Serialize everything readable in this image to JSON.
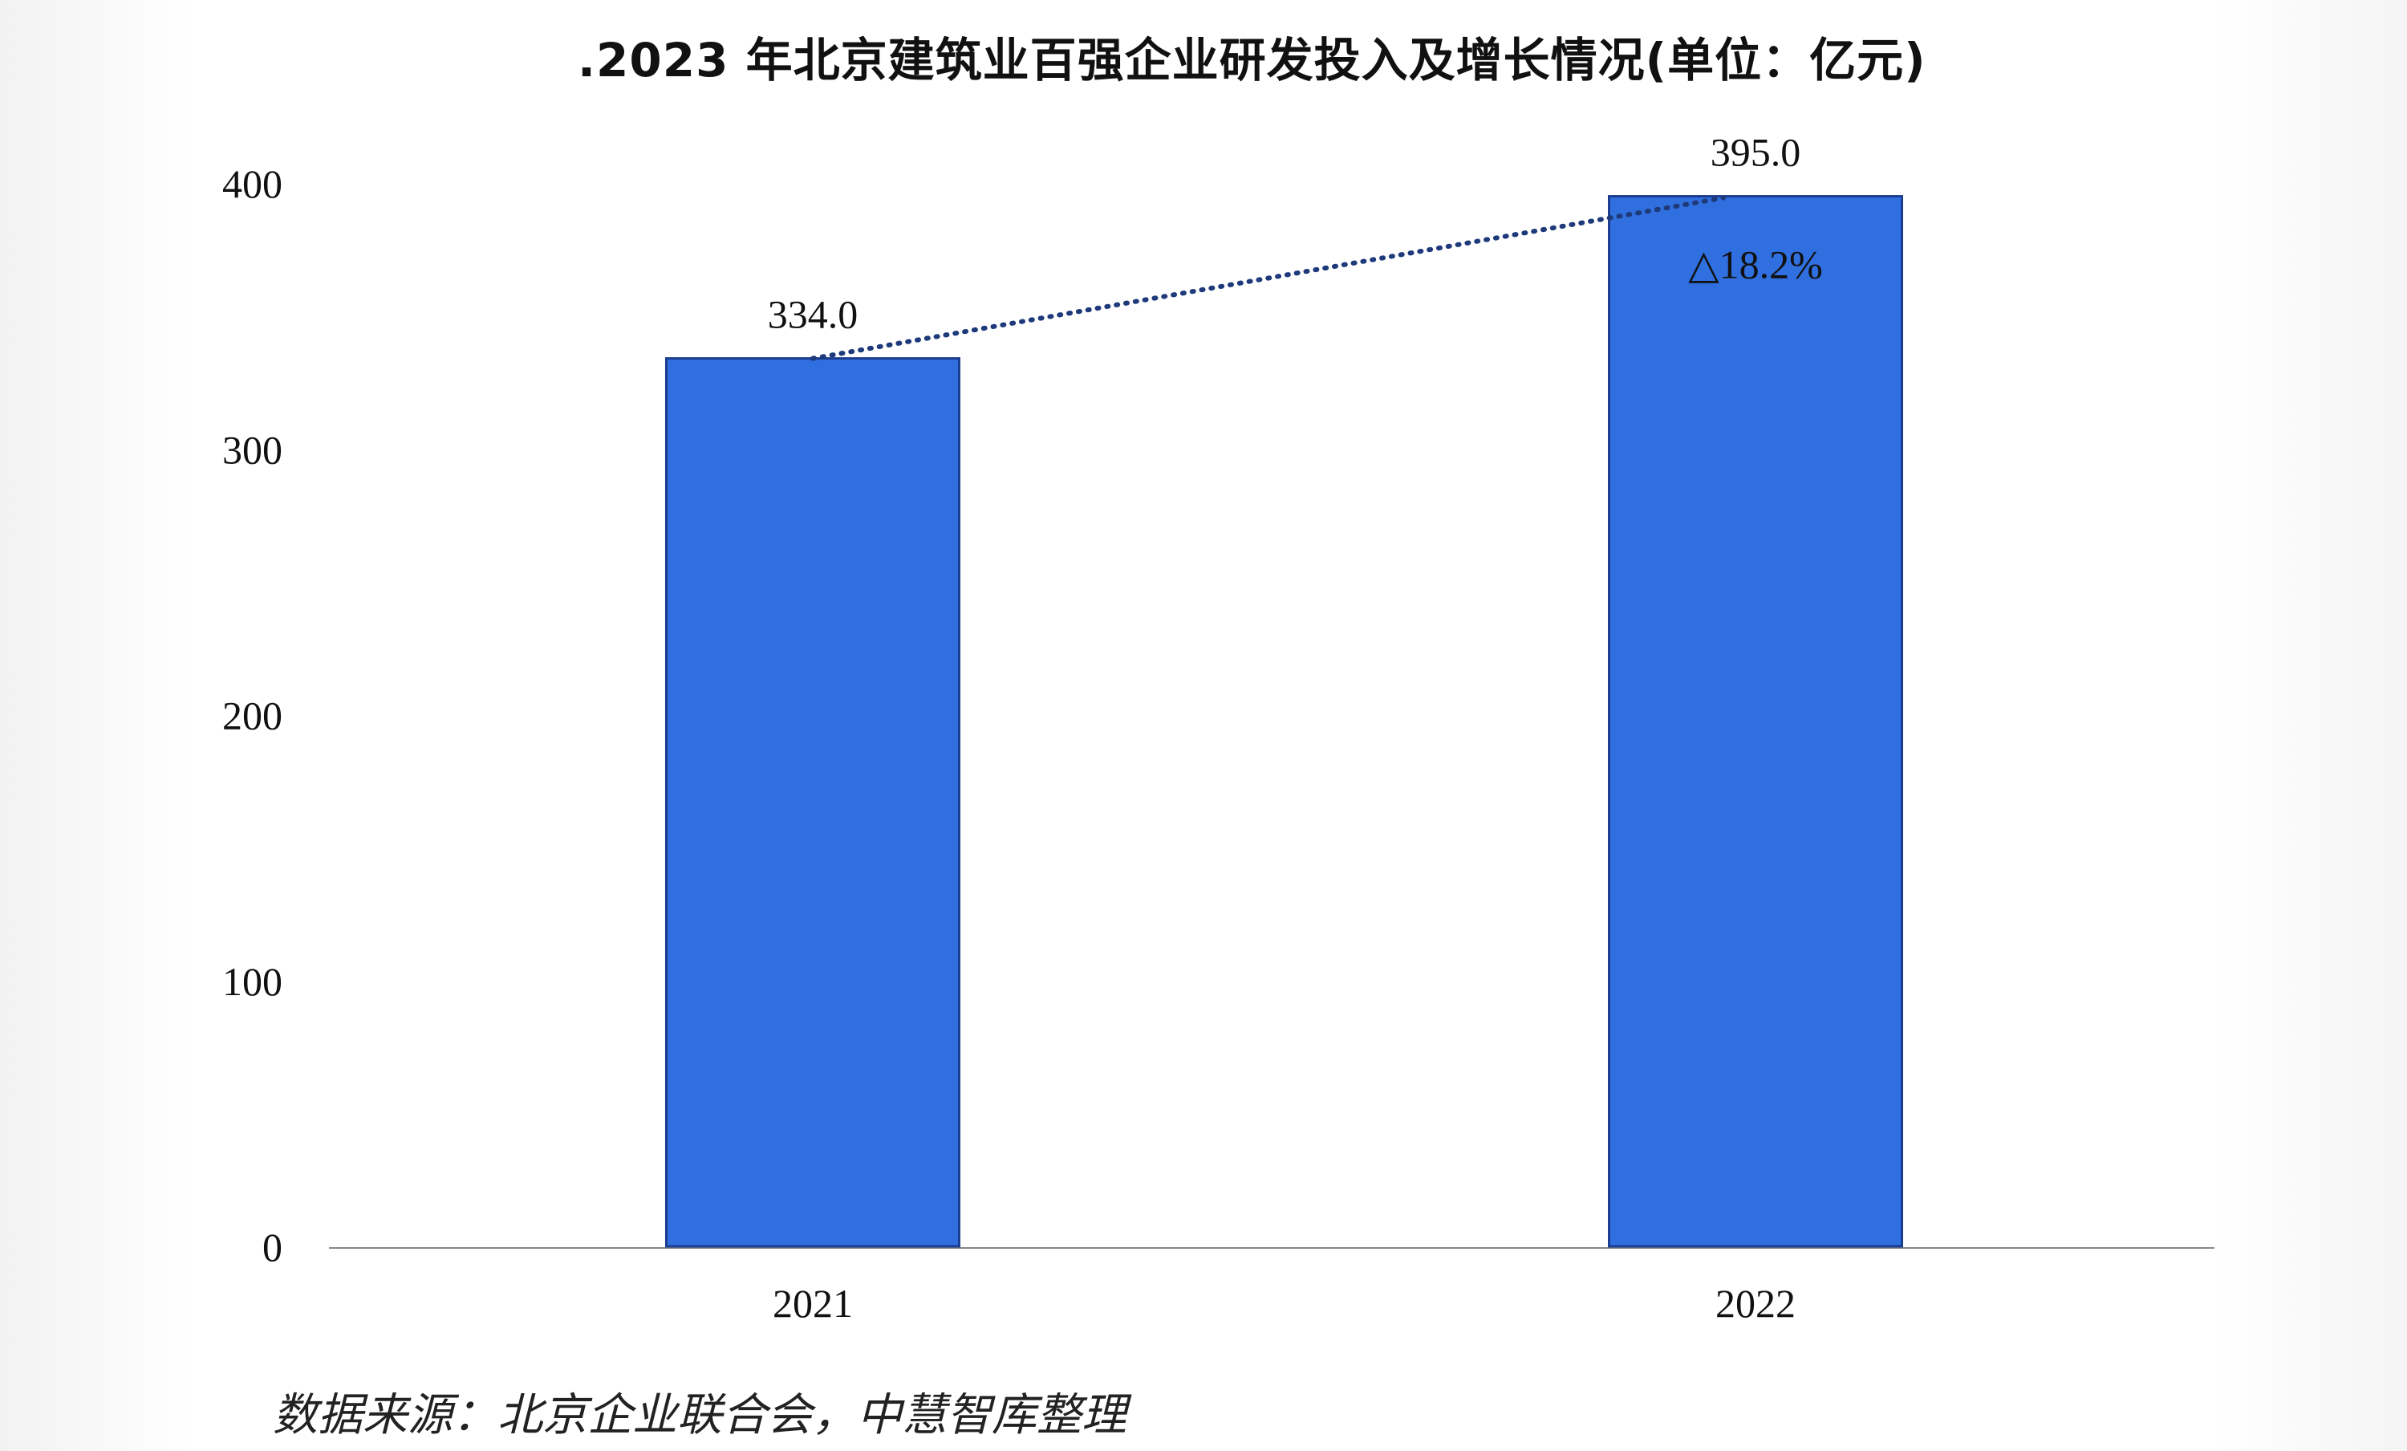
{
  "chart_data": {
    "type": "bar",
    "title": ".2023 年北京建筑业百强企业研发投入及增长情况(单位：亿元)",
    "categories": [
      "2021",
      "2022"
    ],
    "values": [
      334.0,
      395.0
    ],
    "data_labels": [
      "334.0",
      "395.0"
    ],
    "annotation": "△18.2%",
    "ylim": [
      0,
      400
    ],
    "yticks": [
      "0",
      "100",
      "200",
      "300",
      "400"
    ],
    "grid": false,
    "legend": "none",
    "colors": {
      "bar": "#2f6fdf",
      "bar_edge": "#1b3d8f",
      "trend_line": "#1f3a7a",
      "axis": "#888888"
    }
  },
  "source_note": "数据来源：北京企业联合会，中慧智库整理"
}
